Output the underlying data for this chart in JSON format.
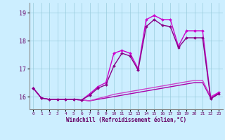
{
  "xlabel": "Windchill (Refroidissement éolien,°C)",
  "background_color": "#cceeff",
  "grid_color": "#99ccdd",
  "xlim": [
    -0.5,
    23.5
  ],
  "ylim": [
    15.55,
    19.35
  ],
  "yticks": [
    16,
    17,
    18,
    19
  ],
  "xticks": [
    0,
    1,
    2,
    3,
    4,
    5,
    6,
    7,
    8,
    9,
    10,
    11,
    12,
    13,
    14,
    15,
    16,
    17,
    18,
    19,
    20,
    21,
    22,
    23
  ],
  "series": [
    {
      "x": [
        0,
        1,
        2,
        3,
        4,
        5,
        6,
        7,
        8,
        9,
        10,
        11,
        12,
        13,
        14,
        15,
        16,
        17,
        18,
        19,
        20,
        21,
        22,
        23
      ],
      "y": [
        16.3,
        15.95,
        15.9,
        15.9,
        15.9,
        15.9,
        15.88,
        15.85,
        15.9,
        15.95,
        16.0,
        16.05,
        16.1,
        16.15,
        16.2,
        16.25,
        16.3,
        16.35,
        16.4,
        16.45,
        16.5,
        16.5,
        15.95,
        16.1
      ],
      "color": "#aa00aa",
      "marker": null,
      "linewidth": 1.0
    },
    {
      "x": [
        0,
        1,
        2,
        3,
        4,
        5,
        6,
        7,
        8,
        9,
        10,
        11,
        12,
        13,
        14,
        15,
        16,
        17,
        18,
        19,
        20,
        21,
        22,
        23
      ],
      "y": [
        16.3,
        15.95,
        15.9,
        15.9,
        15.9,
        15.9,
        15.88,
        15.85,
        15.93,
        16.0,
        16.08,
        16.13,
        16.18,
        16.23,
        16.28,
        16.33,
        16.38,
        16.43,
        16.48,
        16.53,
        16.58,
        16.58,
        16.0,
        16.15
      ],
      "color": "#cc44cc",
      "marker": null,
      "linewidth": 1.0
    },
    {
      "x": [
        0,
        1,
        2,
        3,
        4,
        5,
        6,
        7,
        8,
        9,
        10,
        11,
        12,
        13,
        14,
        15,
        16,
        17,
        18,
        19,
        20,
        21,
        22,
        23
      ],
      "y": [
        16.3,
        15.95,
        15.9,
        15.9,
        15.9,
        15.9,
        15.88,
        16.1,
        16.35,
        16.5,
        17.55,
        17.65,
        17.55,
        17.0,
        18.75,
        18.9,
        18.75,
        18.75,
        17.8,
        18.35,
        18.35,
        18.35,
        15.95,
        16.15
      ],
      "color": "#cc00cc",
      "marker": "D",
      "markersize": 2.0,
      "linewidth": 1.0
    },
    {
      "x": [
        0,
        1,
        2,
        3,
        4,
        5,
        6,
        7,
        8,
        9,
        10,
        11,
        12,
        13,
        14,
        15,
        16,
        17,
        18,
        19,
        20,
        21,
        22,
        23
      ],
      "y": [
        16.3,
        15.95,
        15.9,
        15.9,
        15.9,
        15.9,
        15.88,
        16.05,
        16.3,
        16.42,
        17.1,
        17.55,
        17.45,
        16.95,
        18.5,
        18.75,
        18.55,
        18.5,
        17.75,
        18.1,
        18.1,
        18.1,
        15.92,
        16.1
      ],
      "color": "#880088",
      "marker": "D",
      "markersize": 2.0,
      "linewidth": 1.0
    }
  ]
}
